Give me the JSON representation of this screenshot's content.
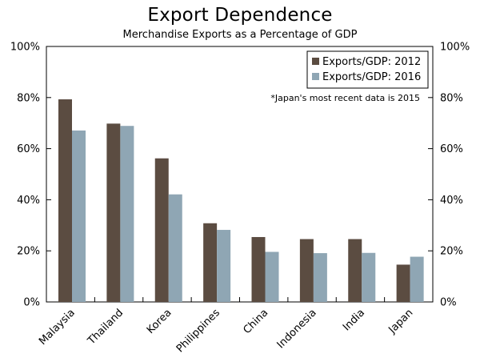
{
  "chart_data": {
    "type": "bar",
    "title": "Export Dependence",
    "subtitle": "Merchandise Exports as a Percentage of GDP",
    "categories": [
      "Malaysia",
      "Thailand",
      "Korea",
      "Philippines",
      "China",
      "Indonesia",
      "India",
      "Japan"
    ],
    "series": [
      {
        "name": "Exports/GDP: 2012",
        "color": "#5b4c41",
        "values": [
          79.3,
          69.8,
          56.2,
          30.8,
          25.4,
          24.6,
          24.6,
          14.6
        ]
      },
      {
        "name": "Exports/GDP: 2016",
        "color": "#8fa6b4",
        "values": [
          67.1,
          68.9,
          42.1,
          28.2,
          19.6,
          19.1,
          19.2,
          17.7
        ]
      }
    ],
    "ylim": [
      0,
      100
    ],
    "yticks": [
      0,
      20,
      40,
      60,
      80,
      100
    ],
    "ytick_labels": [
      "0%",
      "20%",
      "40%",
      "60%",
      "80%",
      "100%"
    ],
    "secondary_yaxis": true,
    "legend_position": "top-right",
    "annotation": "*Japan's most recent data is 2015",
    "grid": false
  }
}
